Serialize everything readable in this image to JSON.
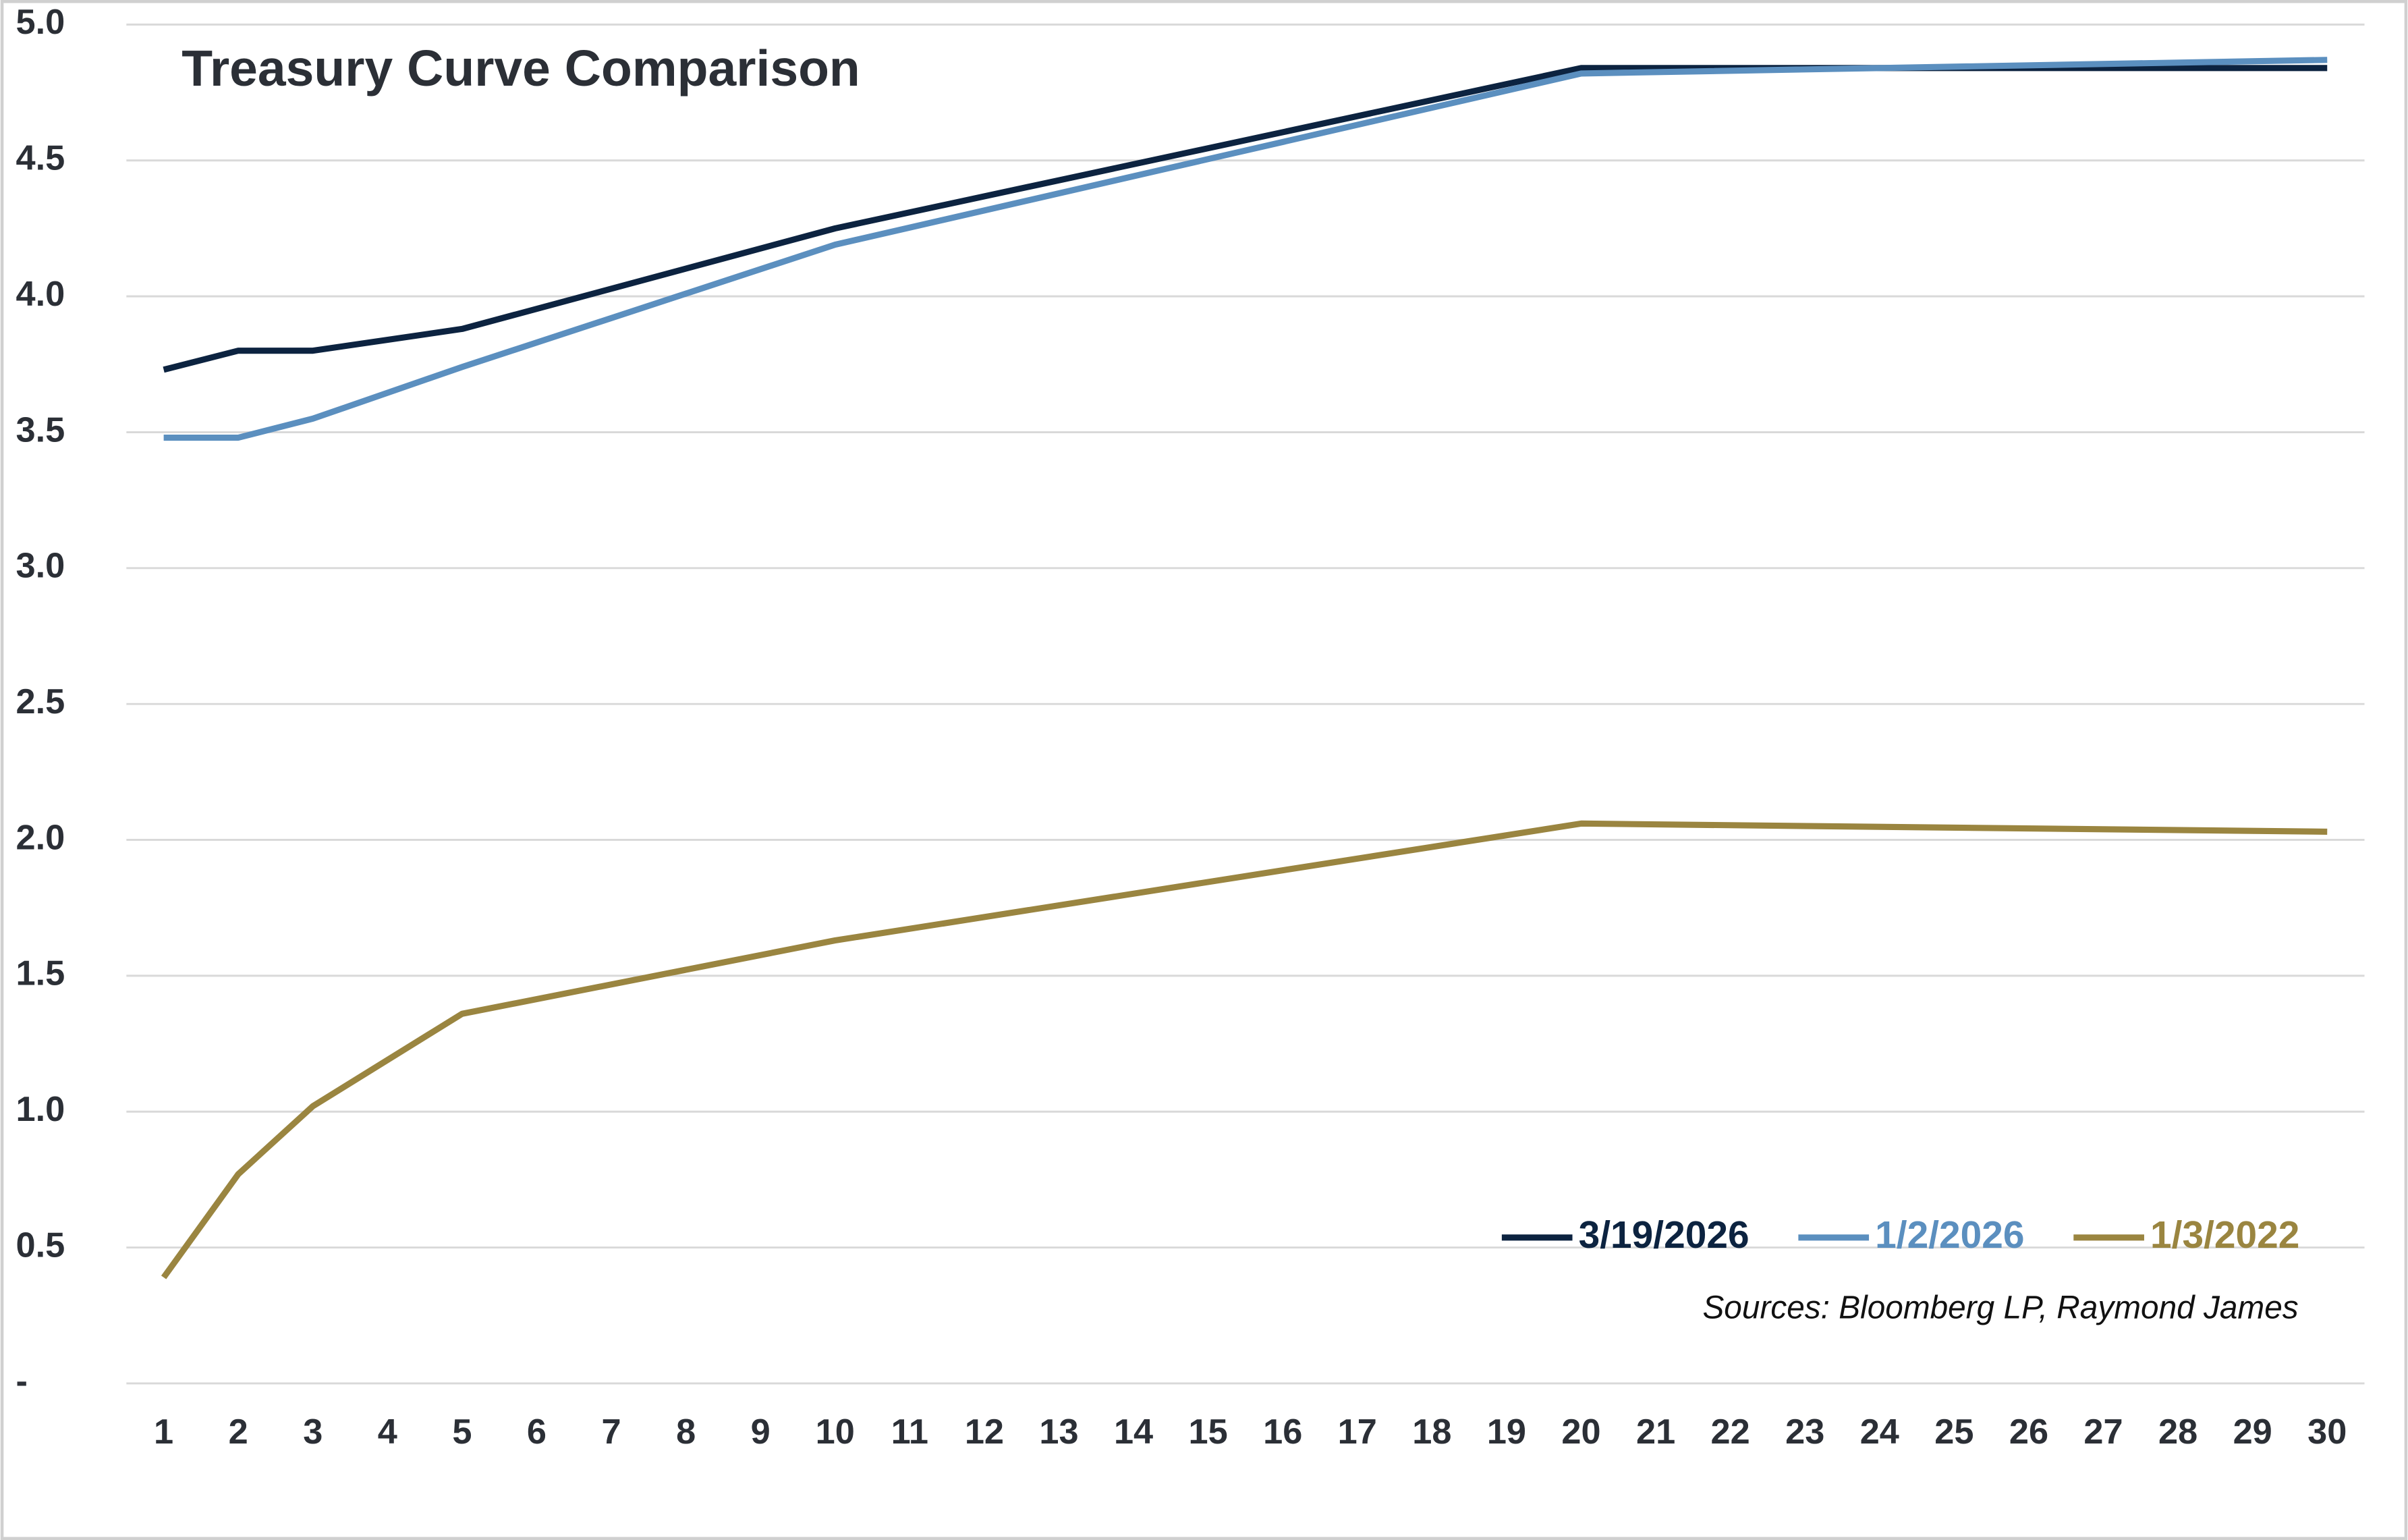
{
  "chart_data": {
    "type": "line",
    "title": "Treasury Curve Comparison",
    "annotation": "Sources: Bloomberg LP, Raymond James",
    "x": [
      1,
      2,
      3,
      5,
      10,
      20,
      30
    ],
    "xlim": [
      0.5,
      30.5
    ],
    "xticks": [
      1,
      2,
      3,
      4,
      5,
      6,
      7,
      8,
      9,
      10,
      11,
      12,
      13,
      14,
      15,
      16,
      17,
      18,
      19,
      20,
      21,
      22,
      23,
      24,
      25,
      26,
      27,
      28,
      29,
      30
    ],
    "ylim": [
      0,
      5
    ],
    "yticks": [
      {
        "value": 0,
        "label": "-"
      },
      0.5,
      {
        "value": 1,
        "label": "1.0"
      },
      1.5,
      {
        "value": 2,
        "label": "2.0"
      },
      2.5,
      {
        "value": 3,
        "label": "3.0"
      },
      3.5,
      {
        "value": 4,
        "label": "4.0"
      },
      4.5,
      {
        "value": 5,
        "label": "5.0"
      }
    ],
    "grid": true,
    "legend": "bottom-right",
    "series": [
      {
        "name": "3/19/2026",
        "color": "#0c2340",
        "values": [
          3.73,
          3.8,
          3.8,
          3.88,
          4.25,
          4.84,
          4.84
        ]
      },
      {
        "name": "1/2/2026",
        "color": "#5b8fbf",
        "values": [
          3.48,
          3.48,
          3.55,
          3.74,
          4.19,
          4.82,
          4.87
        ]
      },
      {
        "name": "1/3/2022",
        "color": "#9a8540",
        "values": [
          0.39,
          0.77,
          1.02,
          1.36,
          1.63,
          2.06,
          2.03
        ]
      }
    ]
  }
}
